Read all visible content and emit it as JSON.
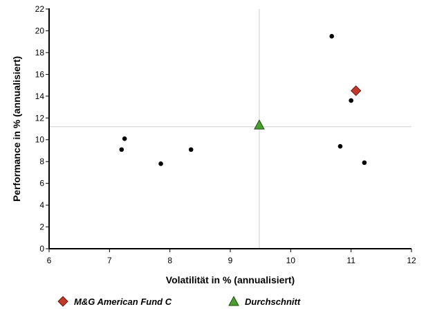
{
  "chart_data": {
    "type": "scatter",
    "title": "",
    "xlabel": "Volatilität in % (annualisiert)",
    "ylabel": "Performance in % (annualisiert)",
    "xlim": [
      6,
      12
    ],
    "ylim": [
      0,
      22
    ],
    "x_ticks": [
      6,
      7,
      8,
      9,
      10,
      11,
      12
    ],
    "y_ticks": [
      0,
      2,
      4,
      6,
      8,
      10,
      12,
      14,
      16,
      18,
      20,
      22
    ],
    "grid": false,
    "reference_lines": {
      "x": 9.48,
      "y": 11.2
    },
    "legend_position": "bottom",
    "series": [
      {
        "name": "",
        "marker": "circle",
        "color": "#000000",
        "points": [
          {
            "x": 7.2,
            "y": 9.1
          },
          {
            "x": 7.25,
            "y": 10.1
          },
          {
            "x": 7.85,
            "y": 7.8
          },
          {
            "x": 8.35,
            "y": 9.1
          },
          {
            "x": 10.68,
            "y": 19.5
          },
          {
            "x": 10.82,
            "y": 9.4
          },
          {
            "x": 11.0,
            "y": 13.6
          },
          {
            "x": 11.22,
            "y": 7.9
          }
        ]
      },
      {
        "name": "M&G American Fund C",
        "marker": "diamond",
        "color": "#c0392b",
        "points": [
          {
            "x": 11.08,
            "y": 14.5
          }
        ]
      },
      {
        "name": "Durchschnitt",
        "marker": "triangle",
        "color": "#4a9e2e",
        "points": [
          {
            "x": 9.48,
            "y": 11.3
          }
        ]
      }
    ]
  }
}
